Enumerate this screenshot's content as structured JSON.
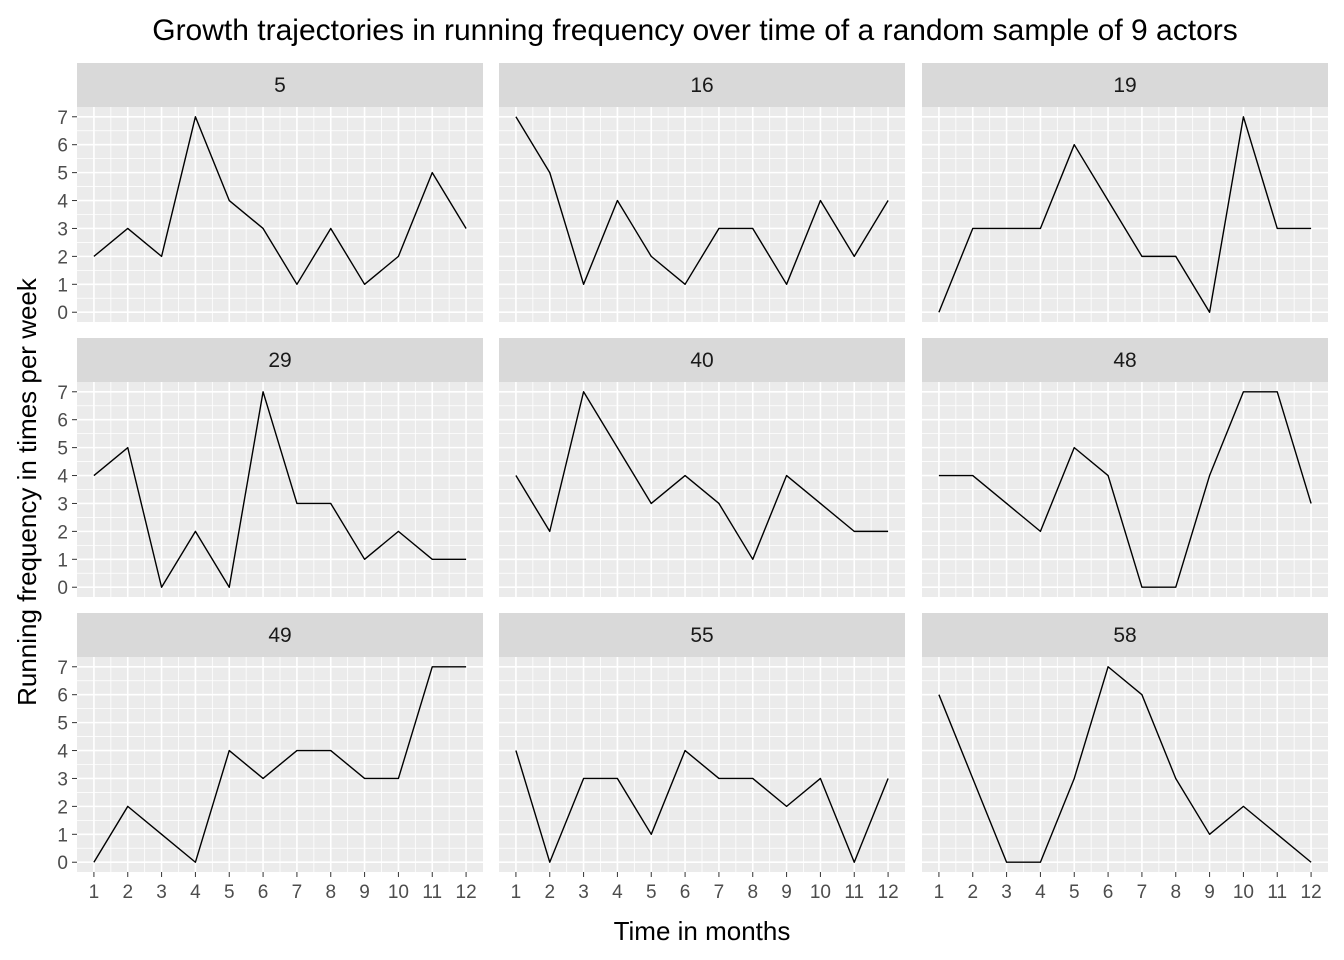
{
  "chart_data": {
    "type": "line",
    "title": "Growth trajectories in running frequency over time of a random sample of 9 actors",
    "xlabel": "Time in months",
    "ylabel": "Running frequency in times per week",
    "x": [
      1,
      2,
      3,
      4,
      5,
      6,
      7,
      8,
      9,
      10,
      11,
      12
    ],
    "x_ticks": [
      1,
      2,
      3,
      4,
      5,
      6,
      7,
      8,
      9,
      10,
      11,
      12
    ],
    "y_ticks": [
      0,
      1,
      2,
      3,
      4,
      5,
      6,
      7
    ],
    "xlim": [
      0.5,
      12.5
    ],
    "ylim": [
      -0.35,
      7.35
    ],
    "grid": true,
    "facet_layout": "3x3",
    "line_color": "#000000",
    "panel_background": "#ebebeb",
    "strip_background": "#d9d9d9",
    "grid_color": "#ffffff",
    "panels": [
      {
        "label": "5",
        "values": [
          2,
          3,
          2,
          7,
          4,
          3,
          1,
          3,
          1,
          2,
          5,
          3
        ]
      },
      {
        "label": "16",
        "values": [
          7,
          5,
          1,
          4,
          2,
          1,
          3,
          3,
          1,
          4,
          2,
          4
        ]
      },
      {
        "label": "19",
        "values": [
          0,
          3,
          3,
          3,
          6,
          4,
          2,
          2,
          0,
          7,
          3,
          3
        ]
      },
      {
        "label": "29",
        "values": [
          4,
          5,
          0,
          2,
          0,
          7,
          3,
          3,
          1,
          2,
          1,
          1
        ]
      },
      {
        "label": "40",
        "values": [
          4,
          2,
          7,
          5,
          3,
          4,
          3,
          1,
          4,
          3,
          2,
          2
        ]
      },
      {
        "label": "48",
        "values": [
          4,
          4,
          3,
          2,
          5,
          4,
          0,
          0,
          4,
          7,
          7,
          3
        ]
      },
      {
        "label": "49",
        "values": [
          0,
          2,
          1,
          0,
          4,
          3,
          4,
          4,
          3,
          3,
          7,
          7
        ]
      },
      {
        "label": "55",
        "values": [
          4,
          0,
          3,
          3,
          1,
          4,
          3,
          3,
          2,
          3,
          0,
          3
        ]
      },
      {
        "label": "58",
        "values": [
          6,
          3,
          0,
          0,
          3,
          7,
          6,
          3,
          1,
          2,
          1,
          0
        ]
      }
    ]
  }
}
